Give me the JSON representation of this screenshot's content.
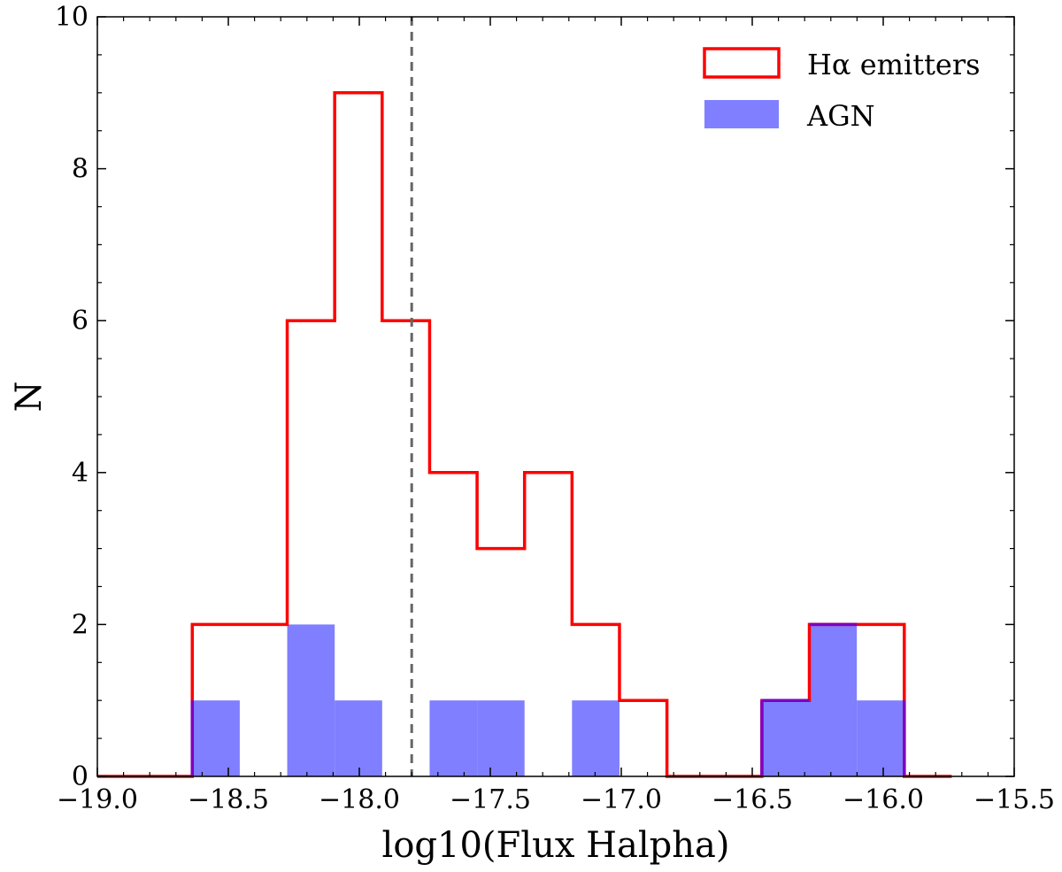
{
  "chart_data": {
    "type": "histogram",
    "xlabel": "log10(Flux Halpha)",
    "ylabel": "N",
    "xlim": [
      -19.0,
      -15.5
    ],
    "ylim": [
      0,
      10
    ],
    "xticks": [
      -19.0,
      -18.5,
      -18.0,
      -17.5,
      -17.0,
      -16.5,
      -16.0,
      -15.5
    ],
    "xtick_labels": [
      "−19.0",
      "−18.5",
      "−18.0",
      "−17.5",
      "−17.0",
      "−16.5",
      "−16.0",
      "−15.5"
    ],
    "yticks": [
      0,
      2,
      4,
      6,
      8,
      10
    ],
    "ytick_labels": [
      "0",
      "2",
      "4",
      "6",
      "8",
      "10"
    ],
    "bin_edges": [
      -19.0,
      -18.8188,
      -18.6376,
      -18.4564,
      -18.2752,
      -18.094,
      -17.9128,
      -17.7316,
      -17.5504,
      -17.3692,
      -17.188,
      -17.0068,
      -16.8256,
      -16.6444,
      -16.4632,
      -16.282,
      -16.1008,
      -15.9196,
      -15.7384
    ],
    "series": [
      {
        "name": "Hα emitters",
        "style": "step",
        "color": "#ff0000",
        "counts": [
          0,
          0,
          2,
          2,
          6,
          9,
          6,
          4,
          3,
          4,
          2,
          1,
          0,
          0,
          1,
          2,
          2,
          0
        ]
      },
      {
        "name": "AGN",
        "style": "filled",
        "color": "#7f7fff",
        "counts": [
          0,
          0,
          1,
          0,
          2,
          1,
          0,
          1,
          1,
          0,
          1,
          0,
          0,
          0,
          1,
          2,
          1,
          0
        ]
      }
    ],
    "vline": {
      "x": -17.8,
      "color": "#666666",
      "style": "dashed"
    },
    "legend_position": "top-right",
    "grid": false
  }
}
